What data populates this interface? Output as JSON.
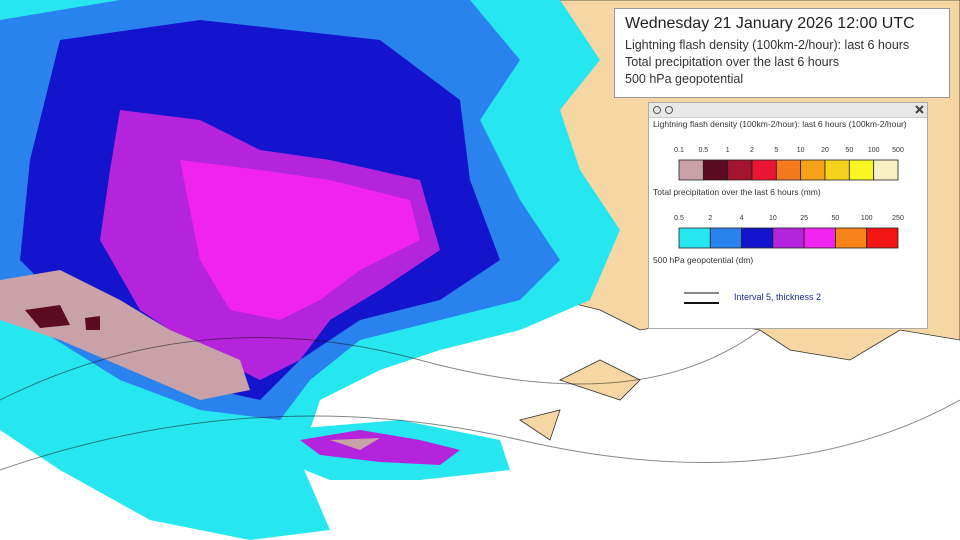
{
  "header": {
    "title": "Wednesday 21 January 2026 12:00 UTC",
    "lines": [
      "Lightning flash density (100km-2/hour): last 6 hours",
      "Total precipitation over the last 6 hours",
      "500 hPa geopotential"
    ]
  },
  "legend": {
    "sections": [
      {
        "title": "Lightning flash density (100km-2/hour): last 6 hours (100km-2/hour)",
        "ticks": [
          "0.1",
          "0.5",
          "1",
          "2",
          "5",
          "10",
          "20",
          "50",
          "100",
          "500"
        ],
        "colors": [
          "#c9a1a9",
          "#5c0c22",
          "#a3142e",
          "#ea1434",
          "#f57a1f",
          "#f7a31a",
          "#f7d21c",
          "#f8f724",
          "#f6f0c2"
        ]
      },
      {
        "title": "Total precipitation over the last 6 hours (mm)",
        "ticks": [
          "0.5",
          "2",
          "4",
          "10",
          "25",
          "50",
          "100",
          "250"
        ],
        "colors": [
          "#26e6f0",
          "#2a82ee",
          "#1414cc",
          "#b424dc",
          "#f024ec",
          "#f6841a",
          "#f41414"
        ]
      },
      {
        "title": "500 hPa geopotential (dm)",
        "line_note": "Interval 5, thickness 2"
      }
    ]
  }
}
